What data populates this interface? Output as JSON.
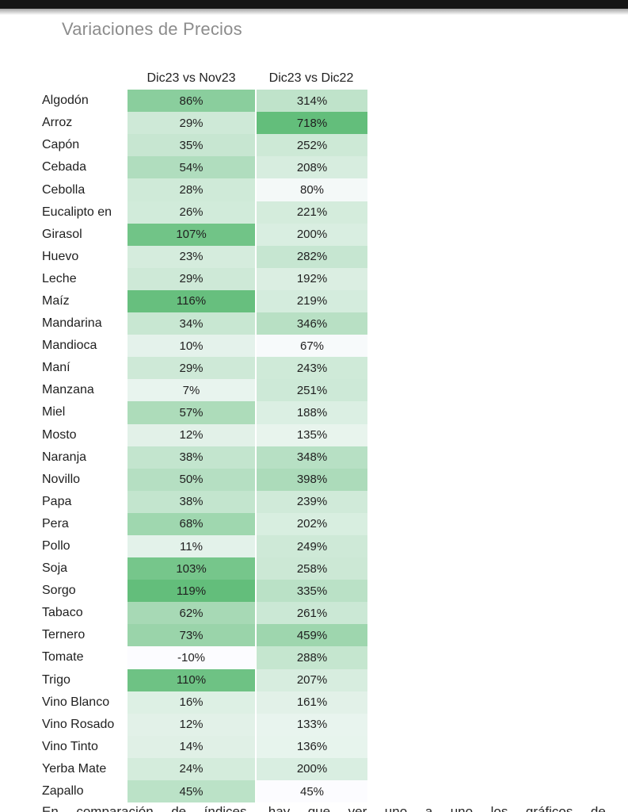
{
  "chart_data": {
    "type": "heatmap",
    "title": "Variaciones de Precios",
    "columns": [
      "Dic23 vs Nov23",
      "Dic23 vs Dic22"
    ],
    "rows": [
      "Algodón",
      "Arroz",
      "Capón",
      "Cebada",
      "Cebolla",
      "Eucalipto en",
      "Girasol",
      "Huevo",
      "Leche",
      "Maíz",
      "Mandarina",
      "Mandioca",
      "Maní",
      "Manzana",
      "Miel",
      "Mosto",
      "Naranja",
      "Novillo",
      "Papa",
      "Pera",
      "Pollo",
      "Soja",
      "Sorgo",
      "Tabaco",
      "Ternero",
      "Tomate",
      "Trigo",
      "Vino Blanco",
      "Vino Rosado",
      "Vino Tinto",
      "Yerba Mate",
      "Zapallo"
    ],
    "series": [
      {
        "name": "Dic23 vs Nov23",
        "values": [
          86,
          29,
          35,
          54,
          28,
          26,
          107,
          23,
          29,
          116,
          34,
          10,
          29,
          7,
          57,
          12,
          38,
          50,
          38,
          68,
          11,
          103,
          119,
          62,
          73,
          -10,
          110,
          16,
          12,
          14,
          24,
          45
        ]
      },
      {
        "name": "Dic23 vs Dic22",
        "values": [
          314,
          718,
          252,
          208,
          80,
          221,
          200,
          282,
          192,
          219,
          346,
          67,
          243,
          251,
          188,
          135,
          348,
          398,
          239,
          202,
          249,
          258,
          335,
          261,
          459,
          288,
          207,
          161,
          133,
          136,
          200,
          45
        ]
      }
    ],
    "value_format": "percent",
    "legend": "none",
    "color_scale": {
      "min_color": "#FCFCFF",
      "max_color": "#63BE7B",
      "per_column": true
    }
  },
  "caption": {
    "fragment": "En comparación de índices, hay que ver uno a uno los gráficos de"
  }
}
